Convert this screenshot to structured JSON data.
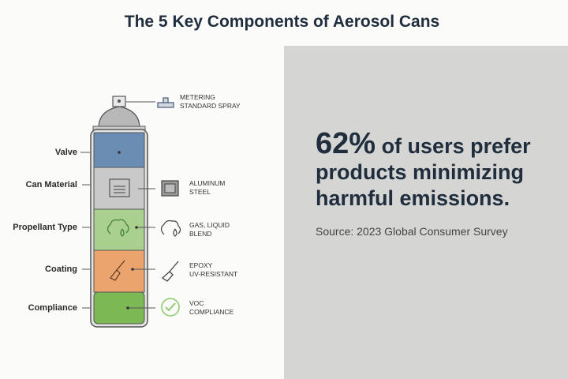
{
  "title": "The 5 Key Components of Aerosol Cans",
  "stat": {
    "highlight": "62%",
    "text": " of users prefer products minimizing harmful emissions.",
    "source": "Source: 2023 Global Consumer Survey"
  },
  "components": [
    {
      "label": "Valve",
      "color": "#6b8cb3",
      "icon": "dot",
      "detail": []
    },
    {
      "label": "Can Material",
      "color": "#c9c9c9",
      "icon": "document-icon",
      "detail": [
        "ALUMINUM",
        "STEEL"
      ],
      "detail_icon": "square-sheet-icon"
    },
    {
      "label": "Propellant Type",
      "color": "#a9d08e",
      "icon": "cloud-drop-icon",
      "detail": [
        "GAS, LIQUID",
        "BLEND"
      ],
      "detail_icon": "cloud-drop-icon"
    },
    {
      "label": "Coating",
      "color": "#eba46e",
      "icon": "brush-icon",
      "detail": [
        "EPOXY",
        "UV-RESISTANT"
      ],
      "detail_icon": "brush-icon"
    },
    {
      "label": "Compliance",
      "color": "#7cb954",
      "icon": "dot",
      "detail": [
        "VOC",
        "COMPLIANCE"
      ],
      "detail_icon": "check-circle-icon"
    }
  ],
  "nozzle": {
    "detail": [
      "METERING",
      "STANDARD SPRAY"
    ],
    "detail_icon": "valve-icon"
  }
}
